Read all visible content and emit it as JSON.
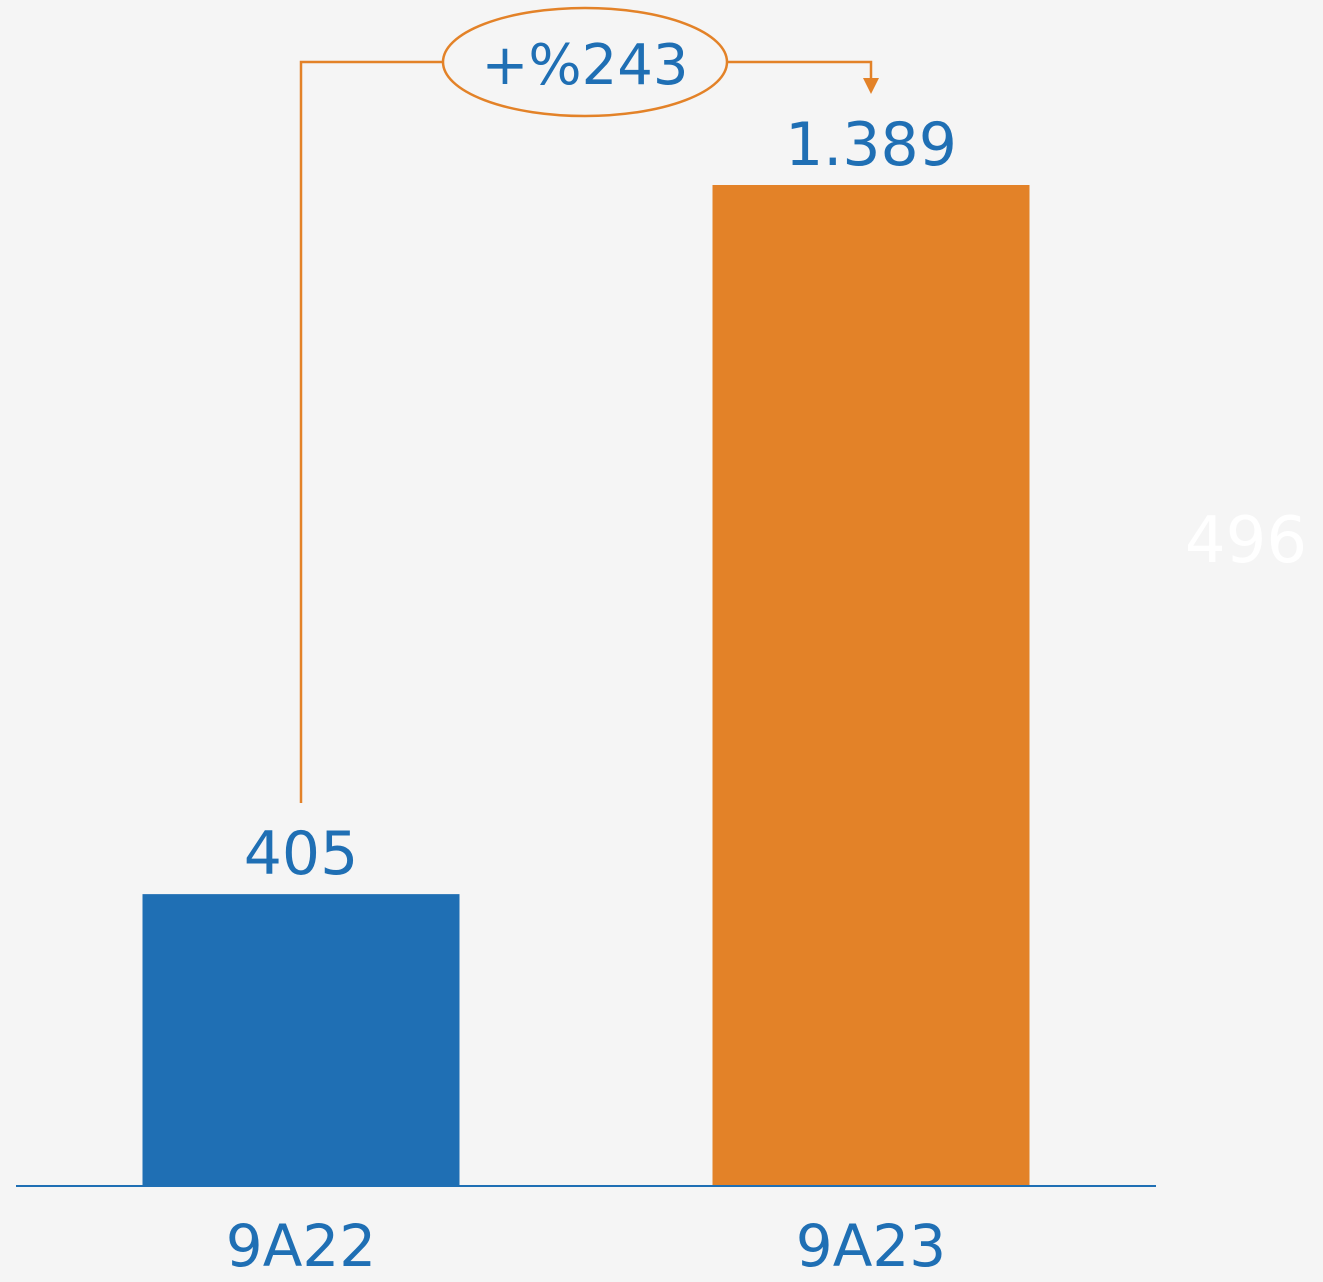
{
  "chart_data": {
    "type": "bar",
    "categories": [
      "9A22",
      "9A23"
    ],
    "values": [
      405,
      1389
    ],
    "value_labels": [
      "405",
      "1.389"
    ],
    "ylim": [
      0,
      1389
    ],
    "grid": false,
    "change_annotation": "+%243",
    "faint_annotation": "496",
    "colors": {
      "bars": [
        "#1f6fb4",
        "#e38228"
      ],
      "axis": "#1f6fb4",
      "text": "#1f6fb4",
      "connector": "#e38228",
      "background": "#f5f5f5"
    }
  }
}
